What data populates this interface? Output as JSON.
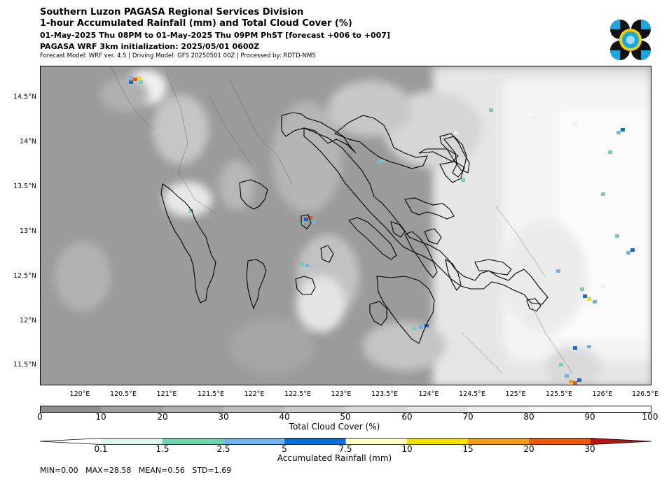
{
  "header": {
    "title_line1": "Southern Luzon PAGASA Regional Services Division",
    "title_line2": "1-hour Accumulated Rainfall (mm) and Total Cloud Cover (%)",
    "valid_time": "01-May-2025 Thu 08PM to 01-May-2025 Thu 09PM PhST [forecast +006 to +007]",
    "init_line": "PAGASA WRF 3km initialization: 2025/05/01 0600Z",
    "model_line": "Forecast Model: WRF ver. 4.5 | Driving Model: GFS 20250501 00Z | Processed by: RDTD-NMS"
  },
  "logo": {
    "name": "pagasa-logo",
    "colors": [
      "#111111",
      "#1aa6e0",
      "#f5d000"
    ]
  },
  "map": {
    "lat_labels": [
      "14.5°N",
      "14°N",
      "13.5°N",
      "13°N",
      "12.5°N",
      "12°N",
      "11.5°N"
    ],
    "lon_labels": [
      "120°E",
      "120.5°E",
      "121°E",
      "121.5°E",
      "122°E",
      "122.5°E",
      "123°E",
      "123.5°E",
      "124°E",
      "124.5°E",
      "125°E",
      "125.5°E",
      "126°E",
      "126.5°E"
    ]
  },
  "cloud_cover_bar": {
    "label": "Total Cloud Cover (%)",
    "ticks": [
      "0",
      "10",
      "20",
      "30",
      "40",
      "50",
      "60",
      "70",
      "80",
      "90",
      "100"
    ],
    "colors": [
      "#8f8f8f",
      "#9f9f9f",
      "#afafaf",
      "#bdbdbd",
      "#cbcbcb",
      "#d8d8d8",
      "#e3e3e3",
      "#ececec",
      "#f5f5f5",
      "#ffffff"
    ]
  },
  "rainfall_bar": {
    "label": "Accumulated Rainfall (mm)",
    "ticks": [
      "0.1",
      "1.5",
      "2.5",
      "5",
      "7.5",
      "10",
      "15",
      "20",
      "30"
    ],
    "colors": [
      "#ffffff",
      "#ddf6ee",
      "#6fd3b0",
      "#71b4ee",
      "#0a6ed8",
      "#ffffc4",
      "#f6e000",
      "#f39d18",
      "#ea5a0c",
      "#b81414"
    ]
  },
  "stats": {
    "text": "MIN=0.00   MAX=28.58   MEAN=0.56   STD=1.69"
  }
}
